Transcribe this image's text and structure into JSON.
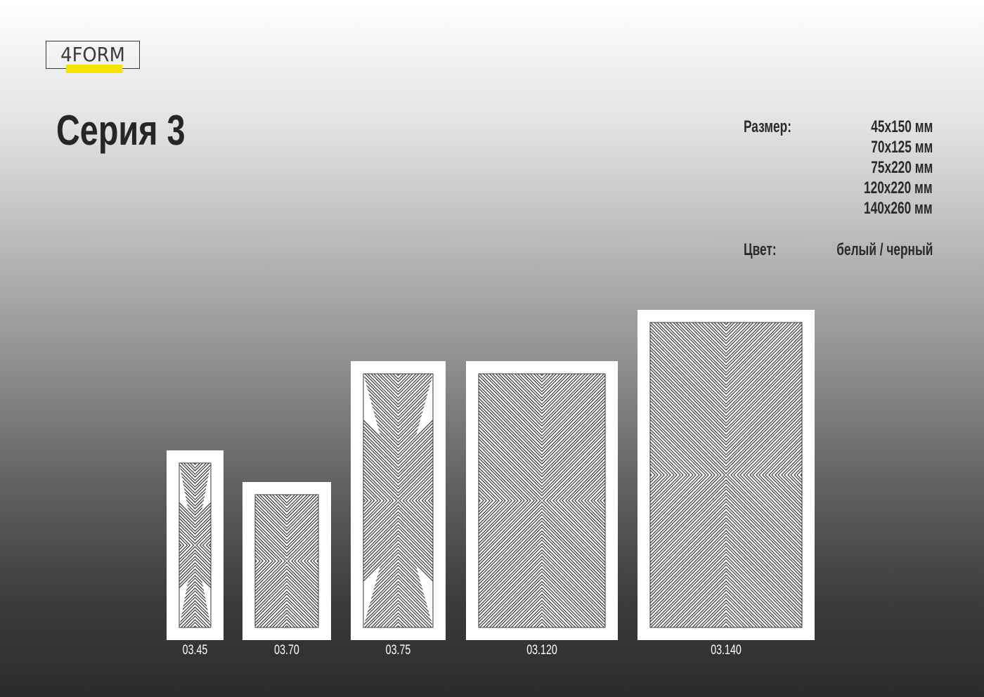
{
  "logo": {
    "text": "4FORM",
    "accent_color": "#f5e400"
  },
  "title": "Серия 3",
  "specs": {
    "size_label": "Размер:",
    "sizes": [
      "45x150 мм",
      "70x125 мм",
      "75x220 мм",
      "120x220 мм",
      "140x260 мм"
    ],
    "color_label": "Цвет:",
    "color_value": "белый / черный"
  },
  "products": [
    {
      "code": "03.45"
    },
    {
      "code": "03.70"
    },
    {
      "code": "03.75"
    },
    {
      "code": "03.120"
    },
    {
      "code": "03.140"
    }
  ],
  "pattern": {
    "name": "diagonal-x-chevron",
    "panel_color": "#ffffff",
    "line_color": "#3a3a3a"
  }
}
